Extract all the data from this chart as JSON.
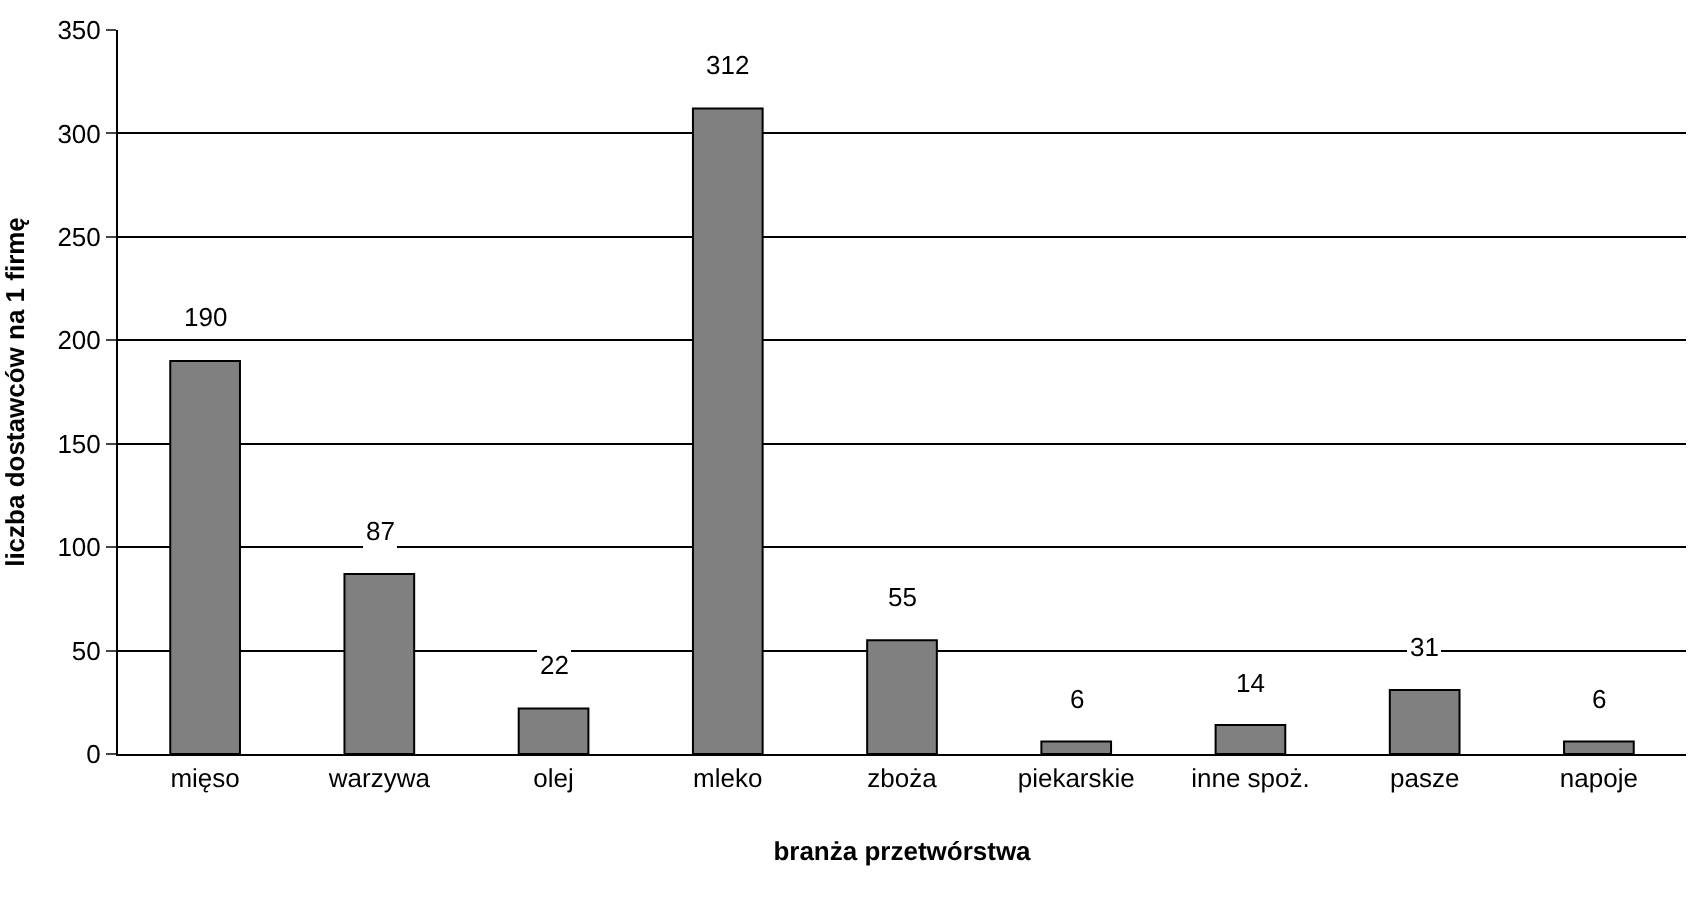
{
  "chart_data": {
    "type": "bar",
    "xlabel": "branża przetwórstwa",
    "ylabel": "liczba dostawców na 1 firmę",
    "categories": [
      "mięso",
      "warzywa",
      "olej",
      "mleko",
      "zboża",
      "piekarskie",
      "inne spoż.",
      "pasze",
      "napoje"
    ],
    "values": [
      190,
      87,
      22,
      312,
      55,
      6,
      14,
      31,
      6
    ],
    "color": "#808080",
    "ylim": [
      0,
      350
    ],
    "yticks": [
      0,
      50,
      100,
      150,
      200,
      250,
      300,
      350
    ],
    "grid": "y",
    "data_labels": true
  }
}
